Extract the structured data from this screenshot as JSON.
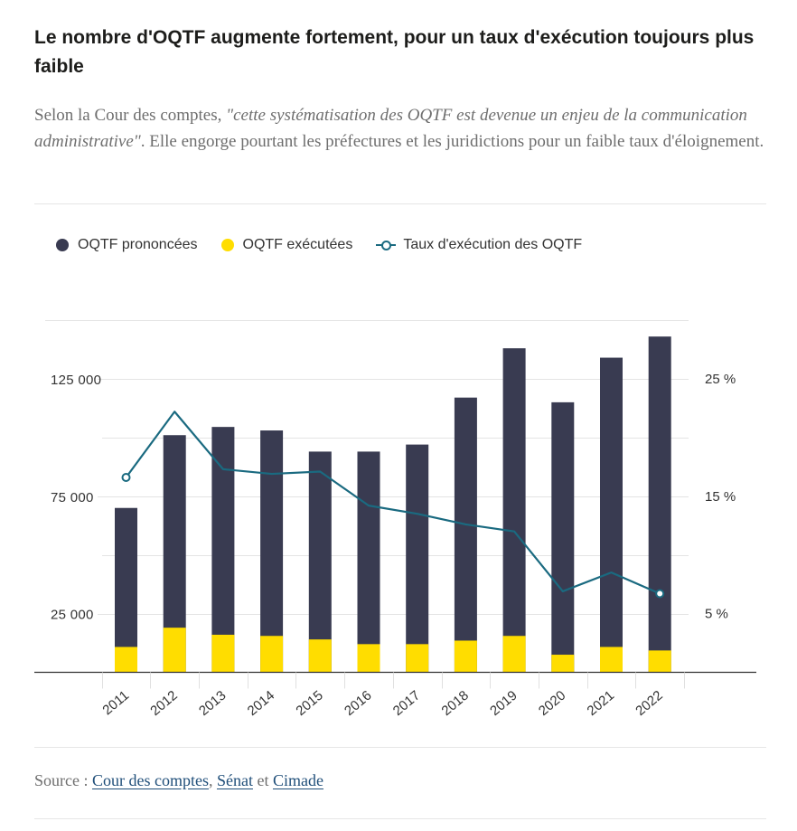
{
  "title": "Le nombre d'OQTF augmente fortement, pour un taux d'exécution toujours plus faible",
  "subtitle": {
    "prefix": "Selon la Cour des comptes, ",
    "quote": "\"cette systématisation des OQTF est devenue un enjeu de la communication administrative\"",
    "suffix": ". Elle engorge pourtant les préfectures et les juridictions pour un faible taux d'éloignement."
  },
  "source": {
    "label": "Source :",
    "link1": "Cour des comptes",
    "sep1": ",",
    "link2": "Sénat",
    "sep2": "et",
    "link3": "Cimade"
  },
  "colors": {
    "prononcees": "#393b51",
    "executees": "#ffdd00",
    "taux": "#1a6a80"
  },
  "chart_data": {
    "type": "bar",
    "categories": [
      "2011",
      "2012",
      "2013",
      "2014",
      "2015",
      "2016",
      "2017",
      "2018",
      "2019",
      "2020",
      "2021",
      "2022"
    ],
    "series": [
      {
        "name": "OQTF prononcées",
        "type": "bar",
        "axis": "left",
        "values": [
          70000,
          101000,
          104500,
          103000,
          94000,
          94000,
          97000,
          117000,
          138000,
          115000,
          134000,
          143000
        ]
      },
      {
        "name": "OQTF exécutées",
        "type": "bar",
        "axis": "left",
        "values": [
          10800,
          19000,
          16000,
          15500,
          14000,
          12000,
          12000,
          13500,
          15500,
          7500,
          10800,
          9300
        ]
      },
      {
        "name": "Taux d'exécution des OQTF",
        "type": "line",
        "axis": "right",
        "values": [
          16.6,
          22.2,
          17.3,
          16.9,
          17.1,
          14.2,
          13.5,
          12.6,
          12.0,
          6.9,
          8.5,
          6.7
        ]
      }
    ],
    "y_left": {
      "min": 0,
      "max": 150000,
      "ticks": [
        25000,
        75000,
        125000
      ],
      "tick_labels": [
        "25 000",
        "75 000",
        "125 000"
      ]
    },
    "y_right": {
      "min": 0,
      "max": 30,
      "ticks": [
        5,
        15,
        25
      ],
      "tick_labels": [
        "5 %",
        "15 %",
        "25 %"
      ]
    },
    "markers": [
      0,
      11
    ],
    "grid": true,
    "legend_position": "top-left"
  }
}
